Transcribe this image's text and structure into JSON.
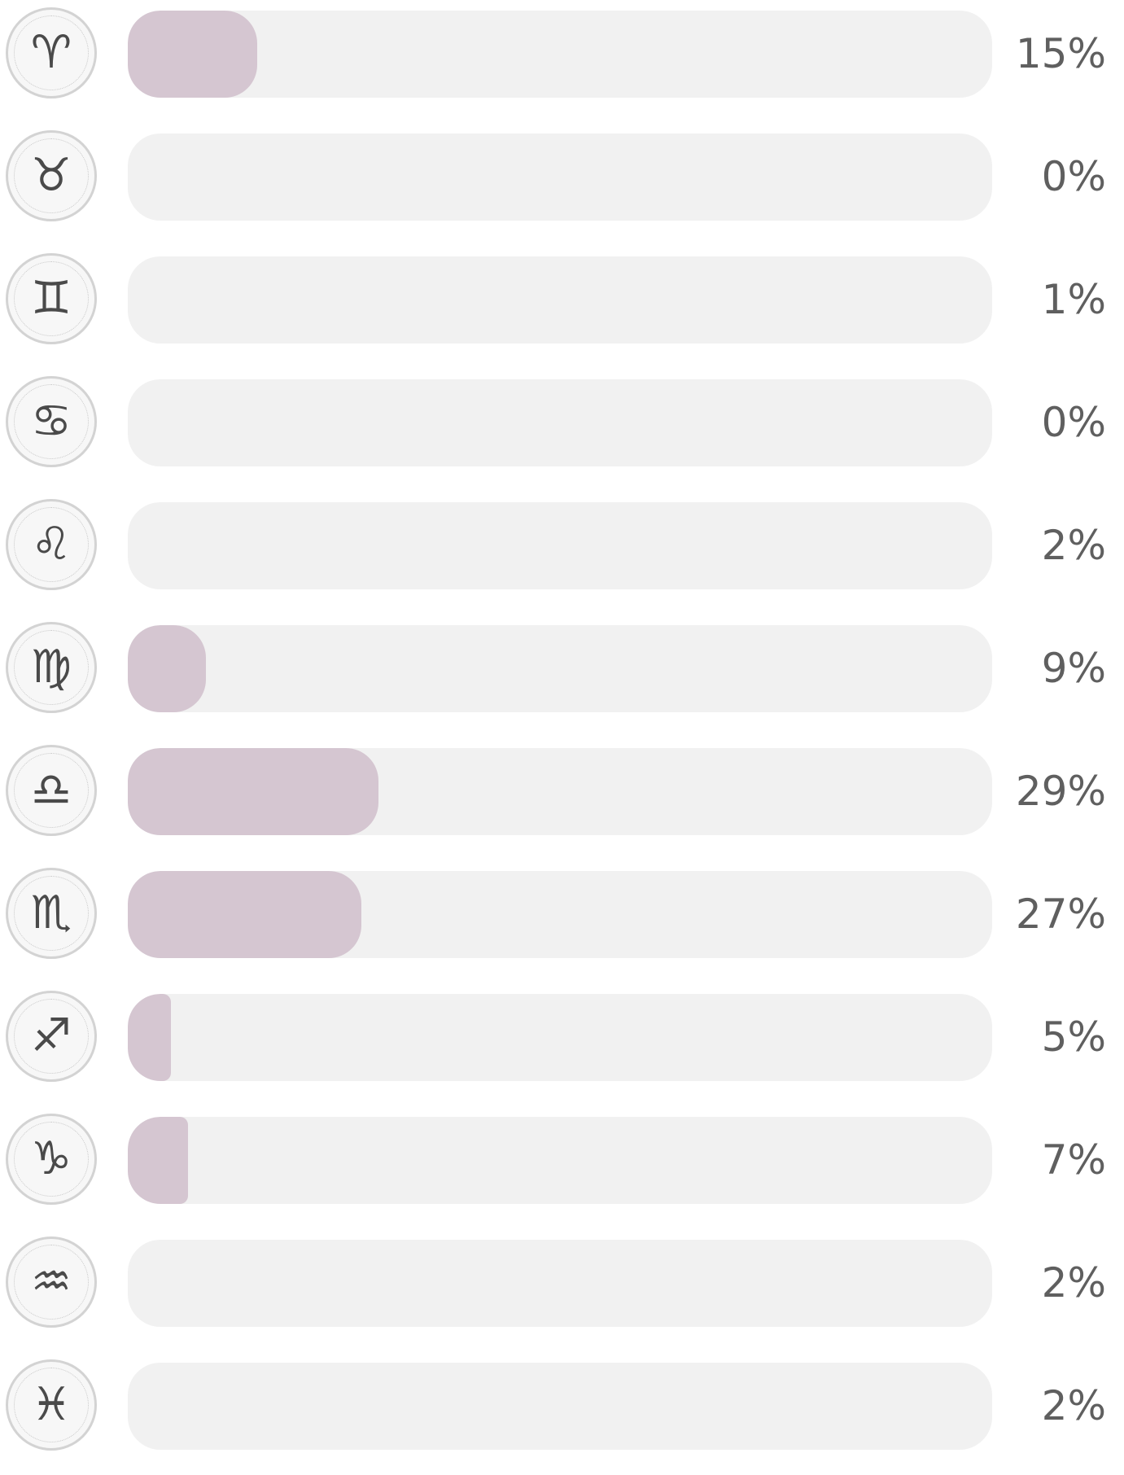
{
  "colors": {
    "track": "#f1f1f1",
    "fill": "#d5c6d1",
    "label": "#5f5f5f",
    "icon_border": "#d3d3d3"
  },
  "chart_data": {
    "type": "bar",
    "orientation": "horizontal",
    "categories": [
      "Aries",
      "Taurus",
      "Gemini",
      "Cancer",
      "Leo",
      "Virgo",
      "Libra",
      "Scorpio",
      "Sagittarius",
      "Capricorn",
      "Aquarius",
      "Pisces"
    ],
    "values": [
      15,
      0,
      1,
      0,
      2,
      9,
      29,
      27,
      5,
      7,
      2,
      2
    ],
    "labels": [
      "15%",
      "0%",
      "1%",
      "0%",
      "2%",
      "9%",
      "29%",
      "27%",
      "5%",
      "7%",
      "2%",
      "2%"
    ],
    "icons": [
      "aries-icon",
      "taurus-icon",
      "gemini-icon",
      "cancer-icon",
      "leo-icon",
      "virgo-icon",
      "libra-icon",
      "scorpio-icon",
      "sagittarius-icon",
      "capricorn-icon",
      "aquarius-icon",
      "pisces-icon"
    ],
    "icon_glyphs": [
      "♈",
      "♉",
      "♊",
      "♋",
      "♌",
      "♍",
      "♎",
      "♏",
      "♐",
      "♑",
      "♒",
      "♓"
    ],
    "xlim": [
      0,
      100
    ],
    "grid": false,
    "legend": "none"
  }
}
